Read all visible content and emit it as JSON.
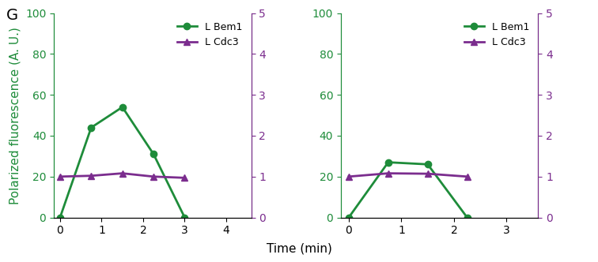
{
  "panel_label": "G",
  "ylabel": "Polarized fluorescence (A. U.)",
  "xlabel": "Time (min)",
  "chart_data": [
    {
      "type": "line",
      "x": [
        0,
        0.75,
        1.5,
        2.25,
        3
      ],
      "xlim": [
        -0.15,
        4.6
      ],
      "xticks": [
        0,
        1,
        2,
        3,
        4
      ],
      "ylim": [
        0,
        100
      ],
      "yticks": [
        0,
        20,
        40,
        60,
        80,
        100
      ],
      "y2lim": [
        0,
        5
      ],
      "y2ticks": [
        0,
        1,
        2,
        3,
        4,
        5
      ],
      "legend": "upper right",
      "series": [
        {
          "name": "L Bem1",
          "color": "#1e8c3a",
          "marker": "o",
          "values": [
            0,
            44,
            54,
            31,
            0
          ]
        },
        {
          "name": "L Cdc3",
          "color": "#7b2d8e",
          "marker": "^",
          "axis": "y2",
          "values": [
            1.0,
            1.02,
            1.08,
            1.0,
            0.97
          ]
        }
      ]
    },
    {
      "type": "line",
      "x": [
        0,
        0.75,
        1.5,
        2.25
      ],
      "xlim": [
        -0.15,
        3.6
      ],
      "xticks": [
        0,
        1,
        2,
        3
      ],
      "ylim": [
        0,
        100
      ],
      "yticks": [
        0,
        20,
        40,
        60,
        80,
        100
      ],
      "y2lim": [
        0,
        5
      ],
      "y2ticks": [
        0,
        1,
        2,
        3,
        4,
        5
      ],
      "legend": "upper right",
      "series": [
        {
          "name": "L Bem1",
          "color": "#1e8c3a",
          "marker": "o",
          "values": [
            0,
            27,
            26,
            0
          ]
        },
        {
          "name": "L Cdc3",
          "color": "#7b2d8e",
          "marker": "^",
          "axis": "y2",
          "values": [
            1.0,
            1.08,
            1.07,
            1.0
          ]
        }
      ]
    }
  ]
}
